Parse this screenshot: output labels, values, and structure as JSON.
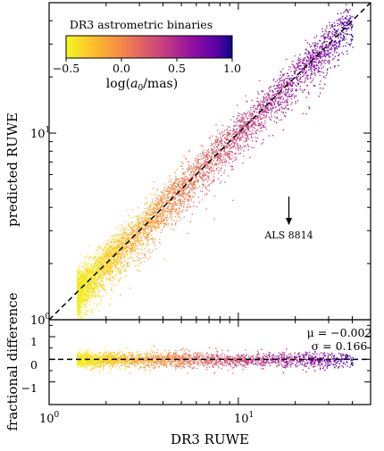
{
  "chart_data": [
    {
      "type": "scatter",
      "panel": "top",
      "xlabel": "",
      "ylabel": "predicted RUWE",
      "xscale": "log",
      "yscale": "log",
      "xlim": [
        1.0,
        50.0
      ],
      "ylim": [
        1.0,
        50.0
      ],
      "y_tick_labels": [
        "10^0",
        "10^1"
      ],
      "colorbar": {
        "title": "DR3 astrometric binaries",
        "label": "log(a_0/mas)",
        "ticks": [
          "−0.5",
          "0.0",
          "0.5",
          "1.0"
        ],
        "range": [
          -0.5,
          1.0
        ],
        "colormap": "plasma_r",
        "location": "top-left"
      },
      "reference_line": {
        "style": "dashed",
        "label": "",
        "relation": "y = x",
        "color": "#000000"
      },
      "annotation": {
        "text": "ALS 8814",
        "point": [
          18.5,
          3.25
        ],
        "marker": "downward arrow (upper limit)"
      },
      "point_cloud": {
        "x_min": 1.4,
        "x_max": 40.0,
        "scatter_dex": 0.1,
        "description_points": [
          [
            1.5,
            1.5
          ],
          [
            2.0,
            2.1
          ],
          [
            3.0,
            3.3
          ],
          [
            5.0,
            5.6
          ],
          [
            10.0,
            11.0
          ],
          [
            20.0,
            22.0
          ],
          [
            35.0,
            36.0
          ]
        ]
      },
      "grid": false
    },
    {
      "type": "scatter",
      "panel": "bottom",
      "xlabel": "DR3 RUWE",
      "ylabel": "fractional difference",
      "xscale": "log",
      "xlim": [
        1.0,
        50.0
      ],
      "ylim": [
        -2.0,
        1.75
      ],
      "x_tick_labels": [
        "10^0",
        "10^1"
      ],
      "y_ticks": [
        "−1",
        "0",
        "1"
      ],
      "reference_line": {
        "style": "dashed",
        "value": 0
      },
      "stats": {
        "mu": "μ = −0.002",
        "sigma": "σ = 0.166"
      },
      "mu": -0.002,
      "sigma": 0.166,
      "grid": false
    }
  ]
}
